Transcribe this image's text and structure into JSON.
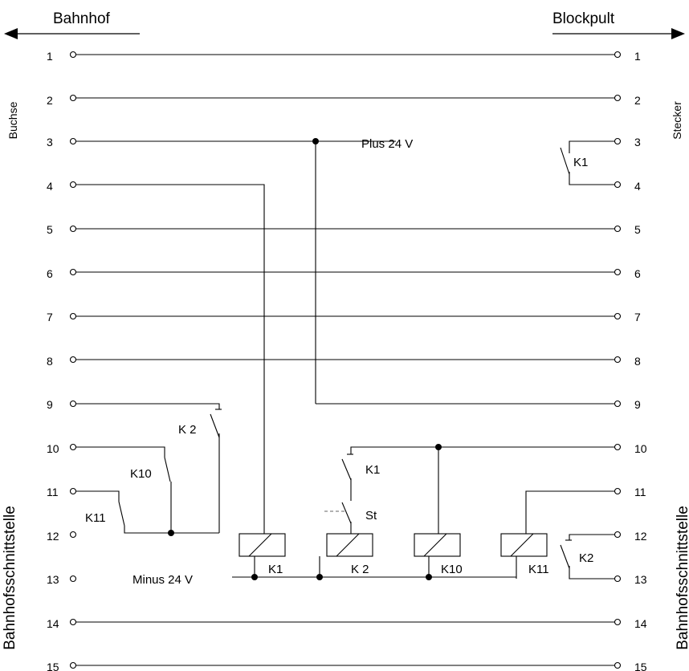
{
  "header": {
    "left": "Bahnhof",
    "right": "Blockpult"
  },
  "side_labels": {
    "left_top": "Buchse",
    "right_top": "Stecker",
    "left_bottom": "Bahnhofsschnittstelle",
    "right_bottom": "Bahnhofsschnittstelle"
  },
  "pins_left": [
    "1",
    "2",
    "3",
    "4",
    "5",
    "6",
    "7",
    "8",
    "9",
    "10",
    "11",
    "12",
    "13",
    "14",
    "15"
  ],
  "pins_right": [
    "1",
    "2",
    "3",
    "4",
    "5",
    "6",
    "7",
    "8",
    "9",
    "10",
    "11",
    "12",
    "13",
    "14",
    "15"
  ],
  "supply": {
    "plus": "Plus 24 V",
    "minus": "Minus 24 V"
  },
  "contacts": {
    "k1_top": "K1",
    "k2_left": "K 2",
    "k10_left": "K10",
    "k11_left": "K11",
    "k1_mid": "K1",
    "st": "St",
    "k2_right": "K2"
  },
  "relays": [
    "K1",
    "K 2",
    "K10",
    "K11"
  ]
}
